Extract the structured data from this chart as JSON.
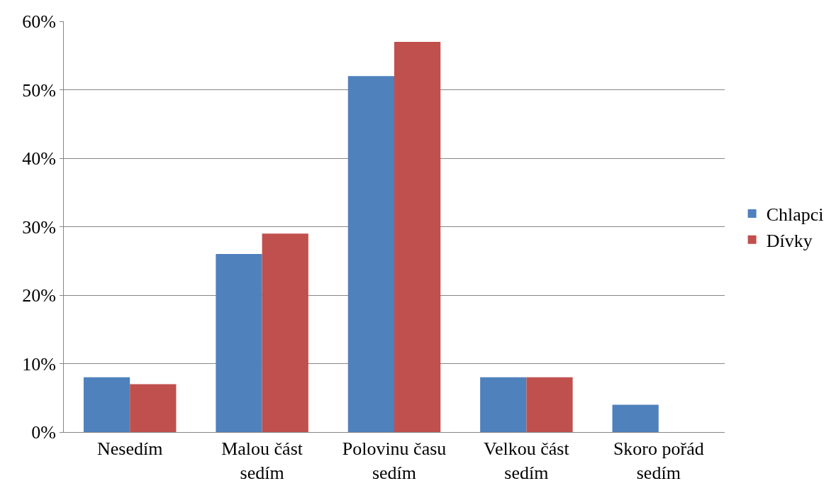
{
  "chart_data": {
    "type": "bar",
    "categories": [
      "Nesedím",
      "Malou část sedím",
      "Polovinu času sedím",
      "Velkou část sedím",
      "Skoro pořád sedím"
    ],
    "series": [
      {
        "name": "Chlapci",
        "color": "#4f81bd",
        "values": [
          8,
          26,
          52,
          8,
          4
        ]
      },
      {
        "name": "Dívky",
        "color": "#c0504d",
        "values": [
          7,
          29,
          57,
          8,
          0
        ]
      }
    ],
    "ylim": [
      0,
      60
    ],
    "yticks": [
      {
        "value": 0,
        "label": "0%"
      },
      {
        "value": 10,
        "label": "10%"
      },
      {
        "value": 20,
        "label": "20%"
      },
      {
        "value": 30,
        "label": "30%"
      },
      {
        "value": 40,
        "label": "40%"
      },
      {
        "value": 50,
        "label": "50%"
      },
      {
        "value": 60,
        "label": "60%"
      }
    ],
    "grid": "y",
    "legend": "right"
  }
}
